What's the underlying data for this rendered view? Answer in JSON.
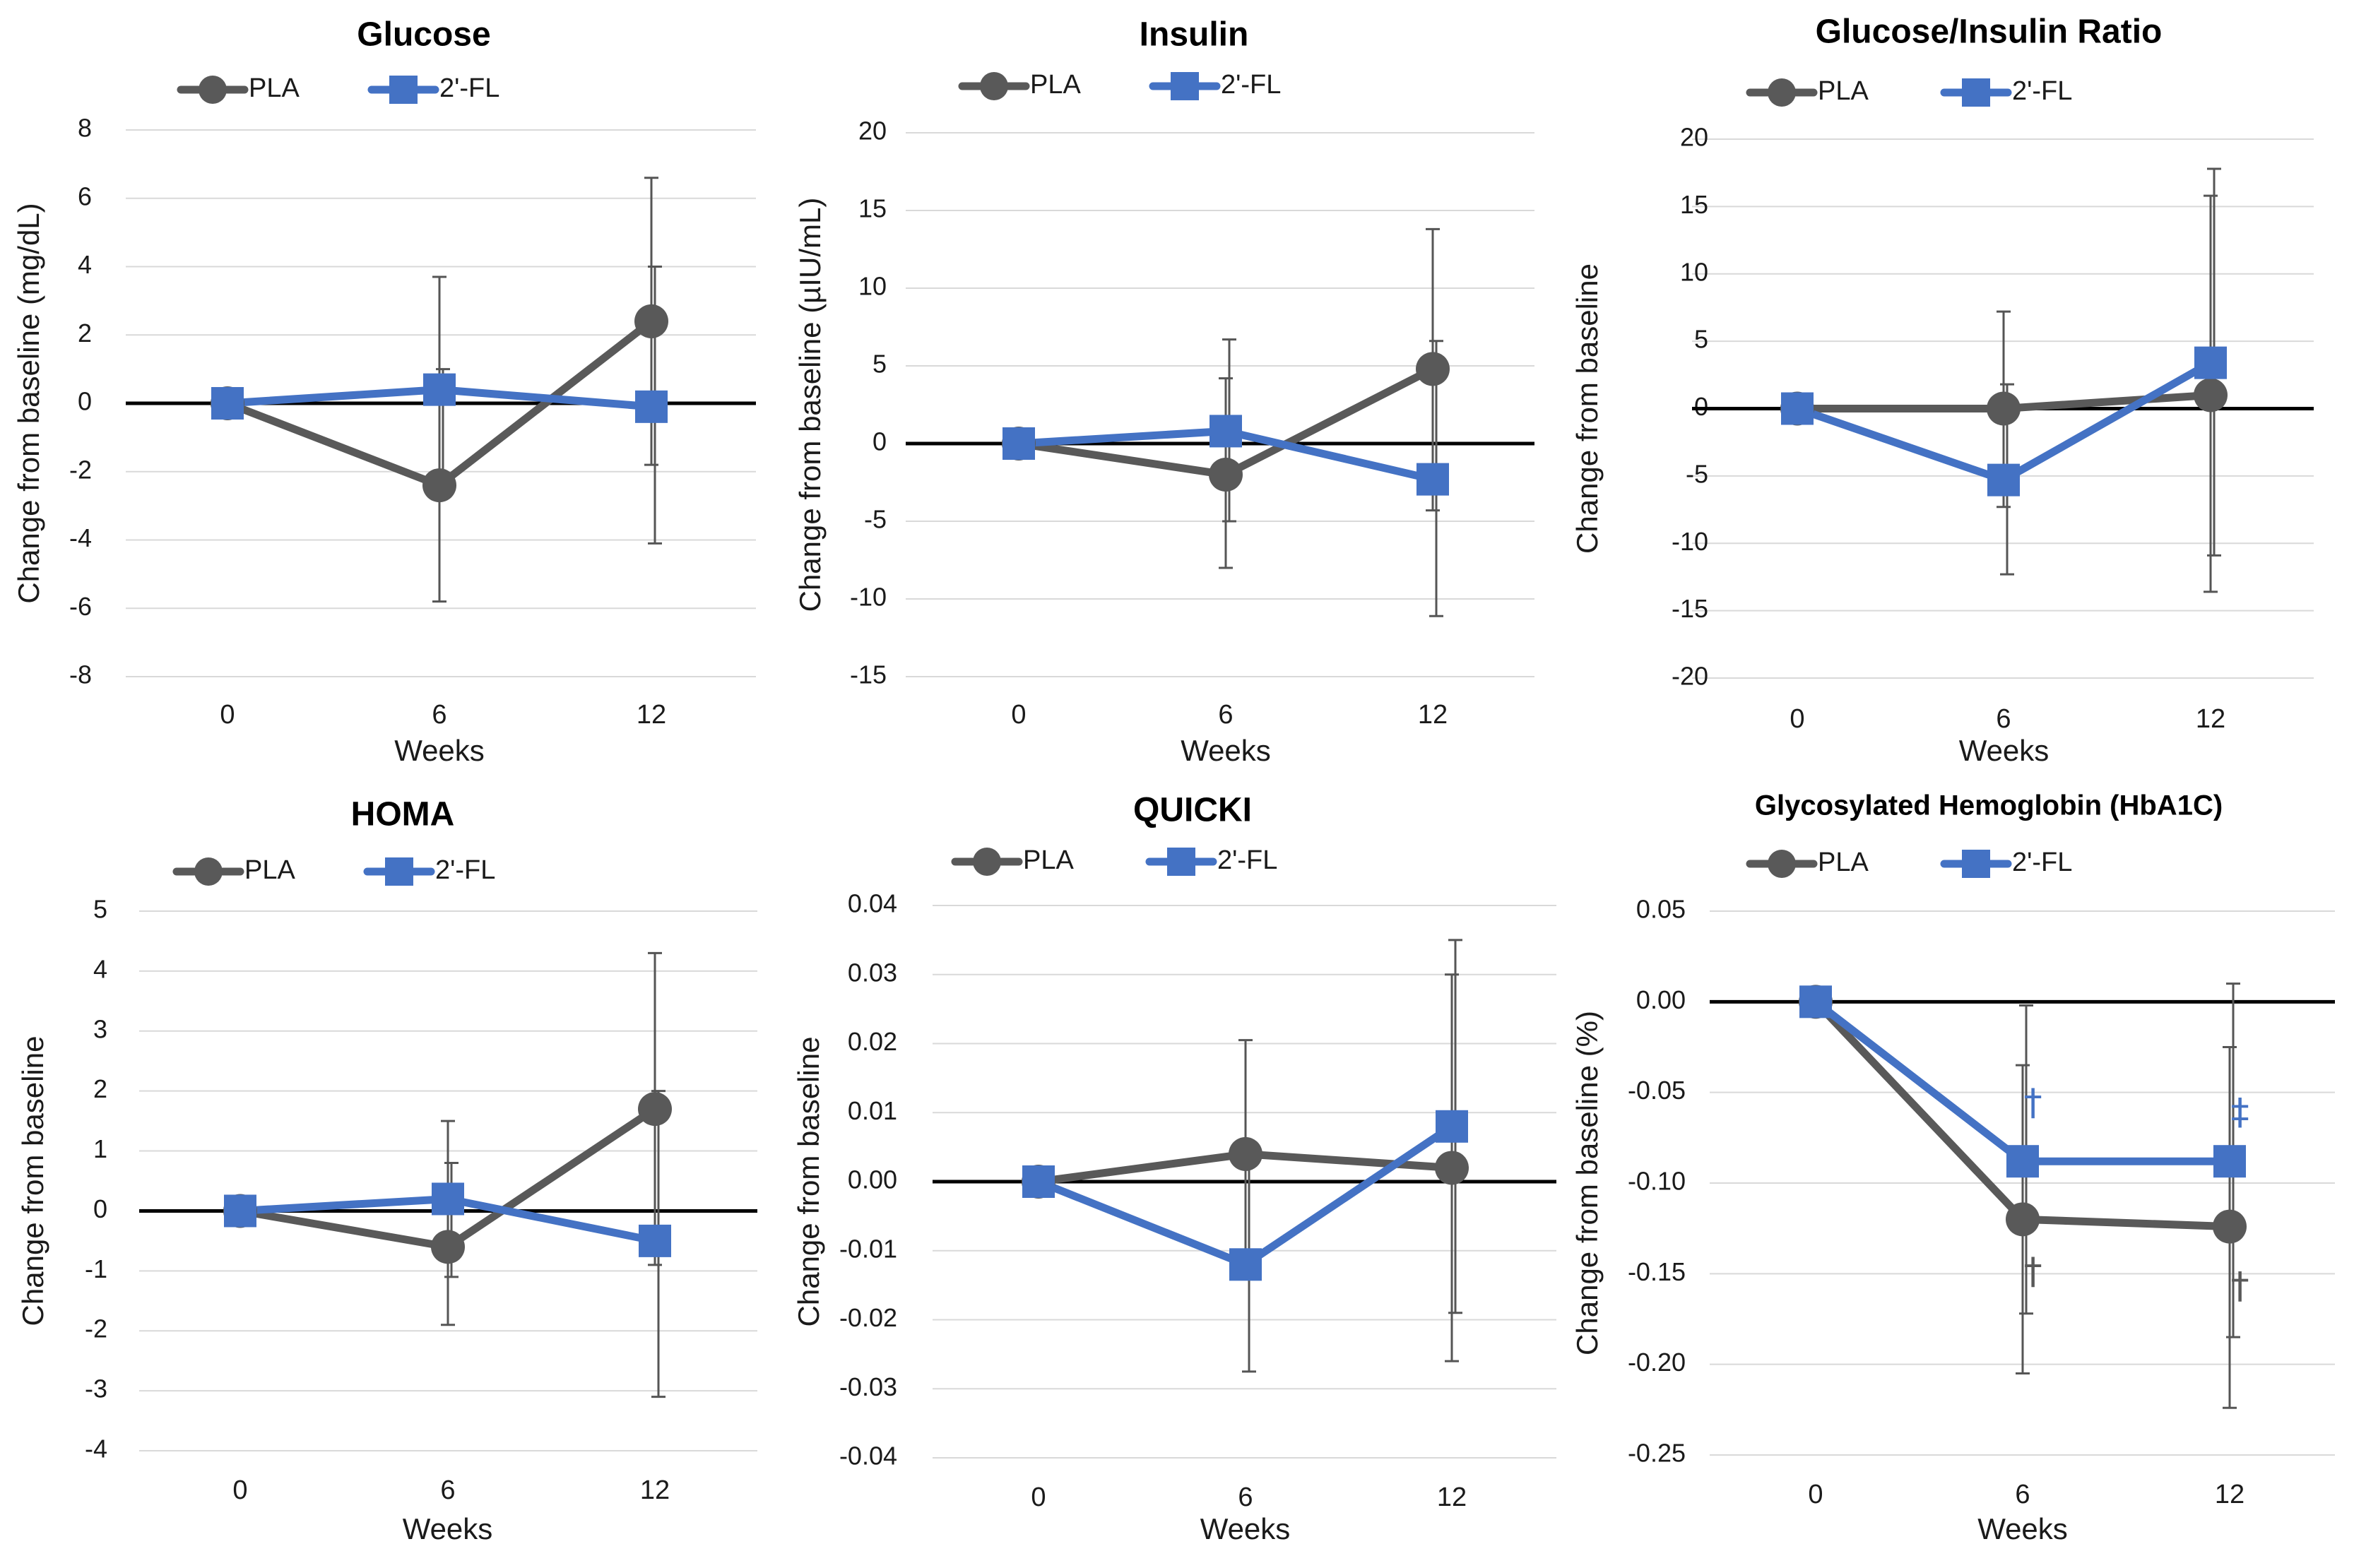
{
  "colors": {
    "pla": "#595959",
    "fl": "#4472C4",
    "grid": "#d9d9d9",
    "zero": "#000000",
    "text": "#1a1a1a"
  },
  "legend": {
    "pla": "PLA",
    "fl": "2'-FL"
  },
  "chart_data": [
    {
      "type": "line",
      "title": "Glucose",
      "xlabel": "Weeks",
      "ylabel": "Change from baseline (mg/dL)",
      "categories": [
        "0",
        "6",
        "12"
      ],
      "ylim": [
        -8,
        8
      ],
      "yticks": [
        8,
        6,
        4,
        2,
        0,
        -2,
        -4,
        -6,
        -8
      ],
      "ytick_labels": [
        "8",
        "6",
        "4",
        "2",
        "0",
        "-2",
        "-4",
        "-6",
        "-8"
      ],
      "series": [
        {
          "name": "PLA",
          "values": [
            0,
            -2.4,
            2.4
          ],
          "err_lo": [
            null,
            -5.8,
            -1.8
          ],
          "err_hi": [
            null,
            3.7,
            6.6
          ]
        },
        {
          "name": "2'-FL",
          "values": [
            0,
            0.4,
            -0.1
          ],
          "err_lo": [
            null,
            -2.3,
            -4.1
          ],
          "err_hi": [
            null,
            1.0,
            4.0
          ]
        }
      ],
      "annotations": []
    },
    {
      "type": "line",
      "title": "Insulin",
      "xlabel": "Weeks",
      "ylabel": "Change from baseline (µIU/mL)",
      "categories": [
        "0",
        "6",
        "12"
      ],
      "ylim": [
        -15,
        20
      ],
      "yticks": [
        20,
        15,
        10,
        5,
        0,
        -5,
        -10,
        -15
      ],
      "ytick_labels": [
        "20",
        "15",
        "10",
        "5",
        "0",
        "-5",
        "-10",
        "-15"
      ],
      "series": [
        {
          "name": "PLA",
          "values": [
            0,
            -2.0,
            4.8
          ],
          "err_lo": [
            null,
            -8.0,
            -4.3
          ],
          "err_hi": [
            null,
            4.2,
            13.8
          ]
        },
        {
          "name": "2'-FL",
          "values": [
            0,
            0.8,
            -2.3
          ],
          "err_lo": [
            null,
            -5.0,
            -11.1
          ],
          "err_hi": [
            null,
            6.7,
            6.6
          ]
        }
      ],
      "annotations": []
    },
    {
      "type": "line",
      "title": "Glucose/Insulin Ratio",
      "xlabel": "Weeks",
      "ylabel": "Change from baseline",
      "categories": [
        "0",
        "6",
        "12"
      ],
      "ylim": [
        -20,
        20
      ],
      "yticks": [
        20,
        15,
        10,
        5,
        0,
        -5,
        -10,
        -15,
        -20
      ],
      "ytick_labels": [
        "20",
        "15",
        "10",
        "5",
        "0",
        "-5",
        "-10",
        "-15",
        "-20"
      ],
      "series": [
        {
          "name": "PLA",
          "values": [
            0,
            0,
            1.0
          ],
          "err_lo": [
            null,
            -7.3,
            -13.6
          ],
          "err_hi": [
            null,
            7.2,
            15.8
          ]
        },
        {
          "name": "2'-FL",
          "values": [
            0,
            -5.3,
            3.4
          ],
          "err_lo": [
            null,
            -12.3,
            -10.9
          ],
          "err_hi": [
            null,
            1.8,
            17.8
          ]
        }
      ],
      "annotations": []
    },
    {
      "type": "line",
      "title": "HOMA",
      "xlabel": "Weeks",
      "ylabel": "Change from baseline",
      "categories": [
        "0",
        "6",
        "12"
      ],
      "ylim": [
        -4,
        5
      ],
      "yticks": [
        5,
        4,
        3,
        2,
        1,
        0,
        -1,
        -2,
        -3,
        -4
      ],
      "ytick_labels": [
        "5",
        "4",
        "3",
        "2",
        "1",
        "0",
        "-1",
        "-2",
        "-3",
        "-4"
      ],
      "series": [
        {
          "name": "PLA",
          "values": [
            0,
            -0.6,
            1.7
          ],
          "err_lo": [
            null,
            -1.9,
            -0.9
          ],
          "err_hi": [
            null,
            1.5,
            4.3
          ]
        },
        {
          "name": "2'-FL",
          "values": [
            0,
            0.2,
            -0.5
          ],
          "err_lo": [
            null,
            -1.1,
            -3.1
          ],
          "err_hi": [
            null,
            0.8,
            2.0
          ]
        }
      ],
      "annotations": []
    },
    {
      "type": "line",
      "title": "QUICKI",
      "xlabel": "Weeks",
      "ylabel": "Change from baseline",
      "categories": [
        "0",
        "6",
        "12"
      ],
      "ylim": [
        -0.04,
        0.04
      ],
      "yticks": [
        0.04,
        0.03,
        0.02,
        0.01,
        0.0,
        -0.01,
        -0.02,
        -0.03,
        -0.04
      ],
      "ytick_labels": [
        "0.04",
        "0.03",
        "0.02",
        "0.01",
        "0.00",
        "-0.01",
        "-0.02",
        "-0.03",
        "-0.04"
      ],
      "series": [
        {
          "name": "PLA",
          "values": [
            0,
            0.004,
            0.002
          ],
          "err_lo": [
            null,
            -0.0125,
            -0.026
          ],
          "err_hi": [
            null,
            0.0205,
            0.03
          ]
        },
        {
          "name": "2'-FL",
          "values": [
            0,
            -0.012,
            0.008
          ],
          "err_lo": [
            null,
            -0.0275,
            -0.019
          ],
          "err_hi": [
            null,
            0.0035,
            0.035
          ]
        }
      ],
      "annotations": []
    },
    {
      "type": "line",
      "title": "Glycosylated Hemoglobin (HbA1C)",
      "xlabel": "Weeks",
      "ylabel": "Change from baseline (%)",
      "categories": [
        "0",
        "6",
        "12"
      ],
      "ylim": [
        -0.25,
        0.05
      ],
      "yticks": [
        0.05,
        0.0,
        -0.05,
        -0.1,
        -0.15,
        -0.2,
        -0.25
      ],
      "ytick_labels": [
        "0.05",
        "0.00",
        "-0.05",
        "-0.10",
        "-0.15",
        "-0.20",
        "-0.25"
      ],
      "series": [
        {
          "name": "PLA",
          "values": [
            0,
            -0.12,
            -0.124
          ],
          "err_lo": [
            null,
            -0.205,
            -0.224
          ],
          "err_hi": [
            null,
            -0.035,
            -0.025
          ]
        },
        {
          "name": "2'-FL",
          "values": [
            0,
            -0.088,
            -0.088
          ],
          "err_lo": [
            null,
            -0.172,
            -0.185
          ],
          "err_hi": [
            null,
            -0.002,
            0.01
          ]
        }
      ],
      "annotations": [
        {
          "text": "†",
          "series": "2'-FL",
          "x": 6.3,
          "y": -0.057
        },
        {
          "text": "‡",
          "series": "2'-FL",
          "x": 12.3,
          "y": -0.062
        },
        {
          "text": "†",
          "series": "PLA",
          "x": 6.3,
          "y": -0.15
        },
        {
          "text": "†",
          "series": "PLA",
          "x": 12.3,
          "y": -0.158
        }
      ]
    }
  ]
}
